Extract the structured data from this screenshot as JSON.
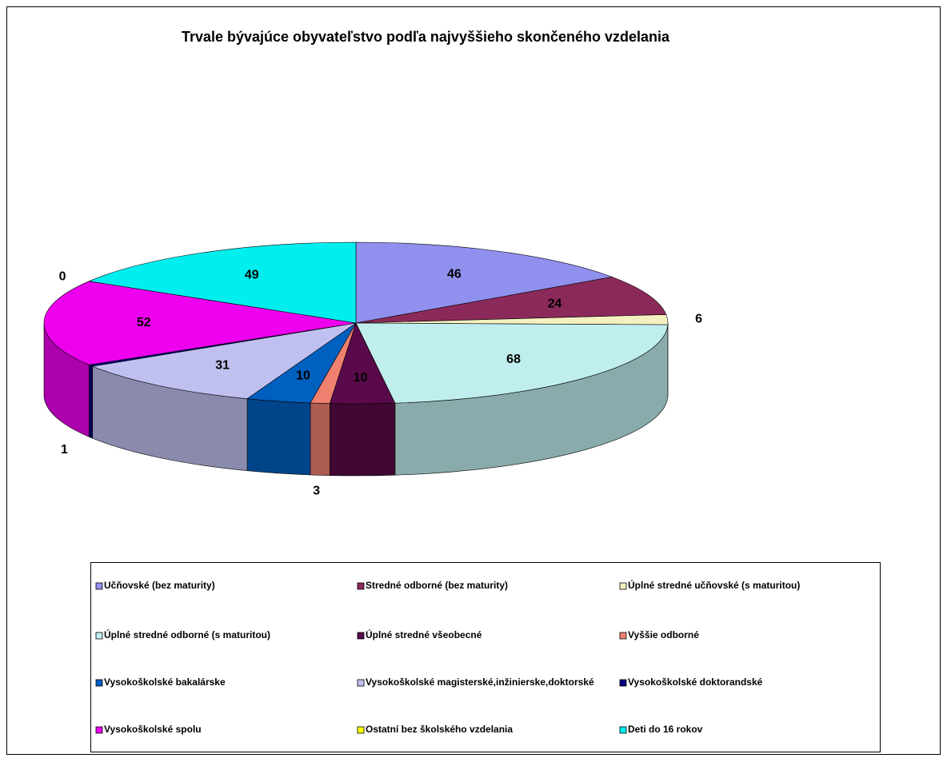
{
  "chart_data": {
    "type": "pie3d",
    "title": "Trvale bývajúce obyvateľstvo podľa najvyššieho skončeného vzdelania",
    "categories": [
      "Učňovské (bez maturity)",
      "Stredné odborné (bez maturity)",
      "Úplné stredné učňovské (s maturitou)",
      "Úplné stredné odborné (s maturitou)",
      "Úplné stredné všeobecné",
      "Vyššie odborné",
      "Vysokoškolské bakalárske",
      "Vysokoškolské magisterské,inžinierske,doktorské",
      "Vysokoškolské doktorandské",
      "Vysokoškolské spolu",
      "Ostatní bez školského vzdelania",
      "Deti do 16 rokov"
    ],
    "values": [
      46,
      24,
      6,
      68,
      10,
      3,
      10,
      31,
      1,
      52,
      0,
      49
    ],
    "colors": [
      "#9090ee",
      "#8b2a5a",
      "#f5f0c0",
      "#c0eeee",
      "#5a0a4a",
      "#f08070",
      "#0060c0",
      "#c0c0f0",
      "#000080",
      "#ee00ee",
      "#ffff00",
      "#00eeee"
    ],
    "legend": "bottom"
  }
}
